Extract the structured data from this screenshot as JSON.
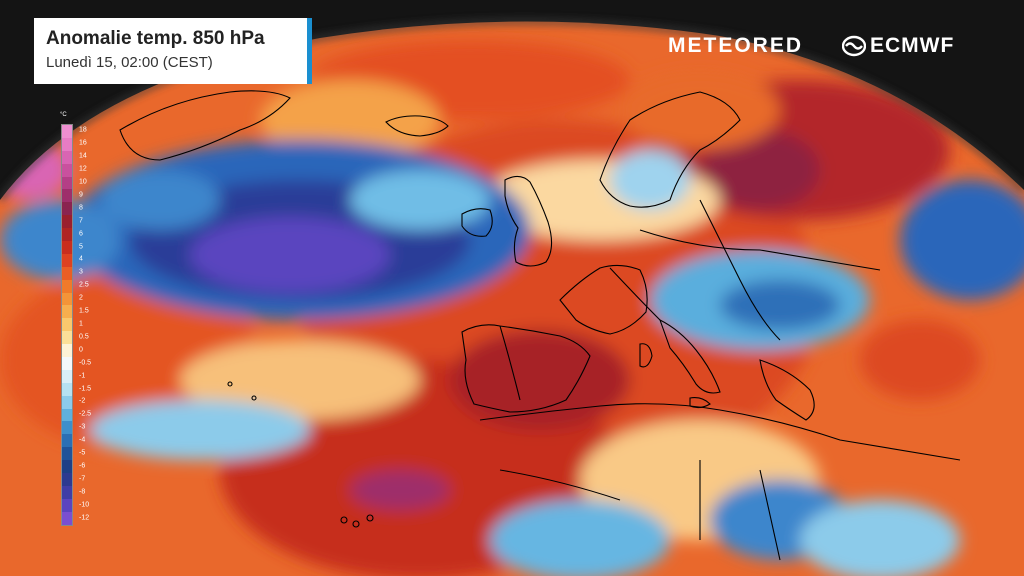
{
  "header": {
    "title": "Anomalie temp. 850 hPa",
    "subtitle": "Lunedì 15, 02:00 (CEST)"
  },
  "brands": {
    "meteored": "METEORED",
    "ecmwf": "ECMWF"
  },
  "legend": {
    "unit": "°C",
    "entries": [
      {
        "label": "18",
        "color": "#ee8fd0"
      },
      {
        "label": "16",
        "color": "#e77cc4"
      },
      {
        "label": "14",
        "color": "#d965b3"
      },
      {
        "label": "12",
        "color": "#c9519e"
      },
      {
        "label": "10",
        "color": "#b43f86"
      },
      {
        "label": "9",
        "color": "#9e2f6b"
      },
      {
        "label": "8",
        "color": "#8a2450"
      },
      {
        "label": "7",
        "color": "#9a1f2e"
      },
      {
        "label": "6",
        "color": "#b02422"
      },
      {
        "label": "5",
        "color": "#c92e1e"
      },
      {
        "label": "4",
        "color": "#de4220"
      },
      {
        "label": "3",
        "color": "#ea5e24"
      },
      {
        "label": "2.5",
        "color": "#f07a2a"
      },
      {
        "label": "2",
        "color": "#f49438"
      },
      {
        "label": "1.5",
        "color": "#f7ae4e"
      },
      {
        "label": "1",
        "color": "#f9c86d"
      },
      {
        "label": "0.5",
        "color": "#fbdf98"
      },
      {
        "label": "0",
        "color": "#fdf2d6"
      },
      {
        "label": "-0.5",
        "color": "#f4f8fb"
      },
      {
        "label": "-1",
        "color": "#d9eef7"
      },
      {
        "label": "-1.5",
        "color": "#b6e1f2"
      },
      {
        "label": "-2",
        "color": "#8ccbea"
      },
      {
        "label": "-2.5",
        "color": "#5fb0dd"
      },
      {
        "label": "-3",
        "color": "#3d8fcb"
      },
      {
        "label": "-4",
        "color": "#2a6fb4"
      },
      {
        "label": "-5",
        "color": "#1f5399"
      },
      {
        "label": "-6",
        "color": "#1d3f86"
      },
      {
        "label": "-7",
        "color": "#2c3a90"
      },
      {
        "label": "-8",
        "color": "#3f3da6"
      },
      {
        "label": "-10",
        "color": "#5a44bf"
      },
      {
        "label": "-12",
        "color": "#7a4fd0"
      }
    ]
  },
  "map": {
    "field": "temperature-anomaly-850hPa",
    "colors": {
      "space": "#141414",
      "globe_base": "#e8622a",
      "outline": "#000000"
    }
  }
}
